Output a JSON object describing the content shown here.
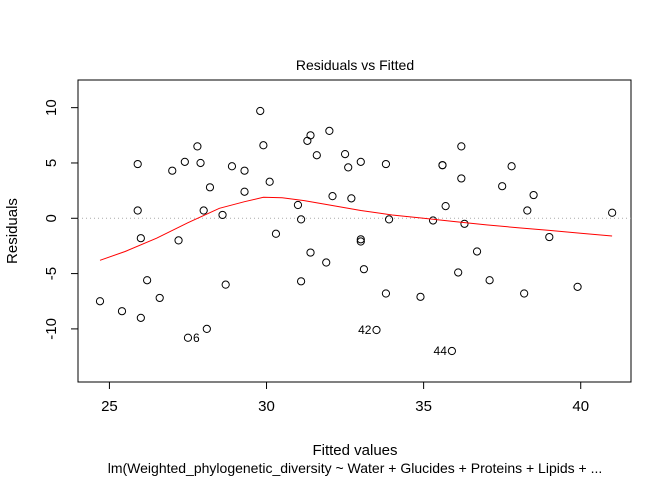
{
  "chart_data": {
    "type": "scatter",
    "title": "Residuals vs Fitted",
    "xlabel": "Fitted values",
    "ylabel": "Residuals",
    "subtitle": "lm(Weighted_phylogenetic_diversity ~ Water + Glucides + Proteins + Lipids + ...",
    "xlim": [
      24,
      41.6
    ],
    "ylim": [
      -14.8,
      12.5
    ],
    "x_ticks": [
      25,
      30,
      35,
      40
    ],
    "y_ticks": [
      -10,
      -5,
      0,
      5,
      10
    ],
    "grid": false,
    "reference_line": {
      "y": 0,
      "style": "dotted",
      "color": "#aaaaaa"
    },
    "point_color": "#000000",
    "smoother_color": "#ff0000",
    "points": [
      {
        "x": 24.7,
        "y": -7.5
      },
      {
        "x": 25.4,
        "y": -8.4
      },
      {
        "x": 25.9,
        "y": 4.9
      },
      {
        "x": 25.9,
        "y": 0.7
      },
      {
        "x": 26.0,
        "y": -1.8
      },
      {
        "x": 26.0,
        "y": -9.0
      },
      {
        "x": 26.2,
        "y": -5.6
      },
      {
        "x": 26.6,
        "y": -7.2
      },
      {
        "x": 27.0,
        "y": 4.3
      },
      {
        "x": 27.2,
        "y": -2.0
      },
      {
        "x": 27.4,
        "y": 5.1
      },
      {
        "x": 27.5,
        "y": -10.8
      },
      {
        "x": 27.8,
        "y": 6.5
      },
      {
        "x": 27.9,
        "y": 5.0
      },
      {
        "x": 28.0,
        "y": 0.7
      },
      {
        "x": 28.2,
        "y": 2.8
      },
      {
        "x": 28.1,
        "y": -10.0
      },
      {
        "x": 28.6,
        "y": 0.3
      },
      {
        "x": 28.7,
        "y": -6.0
      },
      {
        "x": 28.9,
        "y": 4.7
      },
      {
        "x": 29.3,
        "y": 4.3
      },
      {
        "x": 29.3,
        "y": 2.4
      },
      {
        "x": 29.8,
        "y": 9.7
      },
      {
        "x": 29.9,
        "y": 6.6
      },
      {
        "x": 30.1,
        "y": 3.3
      },
      {
        "x": 30.3,
        "y": -1.4
      },
      {
        "x": 31.0,
        "y": 1.2
      },
      {
        "x": 31.1,
        "y": -0.1
      },
      {
        "x": 31.1,
        "y": -5.7
      },
      {
        "x": 31.3,
        "y": 7.0
      },
      {
        "x": 31.4,
        "y": 7.5
      },
      {
        "x": 31.4,
        "y": -3.1
      },
      {
        "x": 31.6,
        "y": 5.7
      },
      {
        "x": 31.9,
        "y": -4.0
      },
      {
        "x": 32.0,
        "y": 7.9
      },
      {
        "x": 32.1,
        "y": 2.0
      },
      {
        "x": 32.5,
        "y": 5.8
      },
      {
        "x": 32.6,
        "y": 4.6
      },
      {
        "x": 32.7,
        "y": 1.8
      },
      {
        "x": 33.0,
        "y": -1.9
      },
      {
        "x": 33.0,
        "y": -2.1
      },
      {
        "x": 33.0,
        "y": 5.1
      },
      {
        "x": 33.1,
        "y": -4.6
      },
      {
        "x": 33.5,
        "y": -10.1
      },
      {
        "x": 33.8,
        "y": 4.9
      },
      {
        "x": 33.8,
        "y": -6.8
      },
      {
        "x": 33.9,
        "y": -0.1
      },
      {
        "x": 34.9,
        "y": -7.1
      },
      {
        "x": 35.3,
        "y": -0.2
      },
      {
        "x": 35.6,
        "y": 4.8
      },
      {
        "x": 35.6,
        "y": 4.8
      },
      {
        "x": 35.7,
        "y": 1.1
      },
      {
        "x": 35.9,
        "y": -12.0
      },
      {
        "x": 36.1,
        "y": -4.9
      },
      {
        "x": 36.2,
        "y": 6.5
      },
      {
        "x": 36.2,
        "y": 3.6
      },
      {
        "x": 36.3,
        "y": -0.5
      },
      {
        "x": 36.7,
        "y": -3.0
      },
      {
        "x": 37.1,
        "y": -5.6
      },
      {
        "x": 37.5,
        "y": 2.9
      },
      {
        "x": 37.8,
        "y": 4.7
      },
      {
        "x": 38.2,
        "y": -6.8
      },
      {
        "x": 38.3,
        "y": 0.7
      },
      {
        "x": 38.5,
        "y": 2.1
      },
      {
        "x": 39.0,
        "y": -1.7
      },
      {
        "x": 39.9,
        "y": -6.2
      },
      {
        "x": 41.0,
        "y": 0.5
      }
    ],
    "labeled_points": [
      {
        "label": "6",
        "x": 27.5,
        "y": -10.8
      },
      {
        "label": "42",
        "x": 33.5,
        "y": -10.1
      },
      {
        "label": "44",
        "x": 35.9,
        "y": -12.0
      }
    ],
    "smoother": [
      {
        "x": 24.7,
        "y": -3.8
      },
      {
        "x": 25.5,
        "y": -3.0
      },
      {
        "x": 26.5,
        "y": -1.8
      },
      {
        "x": 27.5,
        "y": -0.4
      },
      {
        "x": 28.5,
        "y": 0.9
      },
      {
        "x": 29.3,
        "y": 1.5
      },
      {
        "x": 29.9,
        "y": 1.9
      },
      {
        "x": 30.5,
        "y": 1.85
      },
      {
        "x": 31.2,
        "y": 1.6
      },
      {
        "x": 32.0,
        "y": 1.2
      },
      {
        "x": 33.0,
        "y": 0.7
      },
      {
        "x": 34.0,
        "y": 0.3
      },
      {
        "x": 35.0,
        "y": 0.0
      },
      {
        "x": 36.0,
        "y": -0.3
      },
      {
        "x": 37.0,
        "y": -0.6
      },
      {
        "x": 38.0,
        "y": -0.85
      },
      {
        "x": 39.0,
        "y": -1.1
      },
      {
        "x": 40.0,
        "y": -1.35
      },
      {
        "x": 41.0,
        "y": -1.6
      }
    ]
  }
}
